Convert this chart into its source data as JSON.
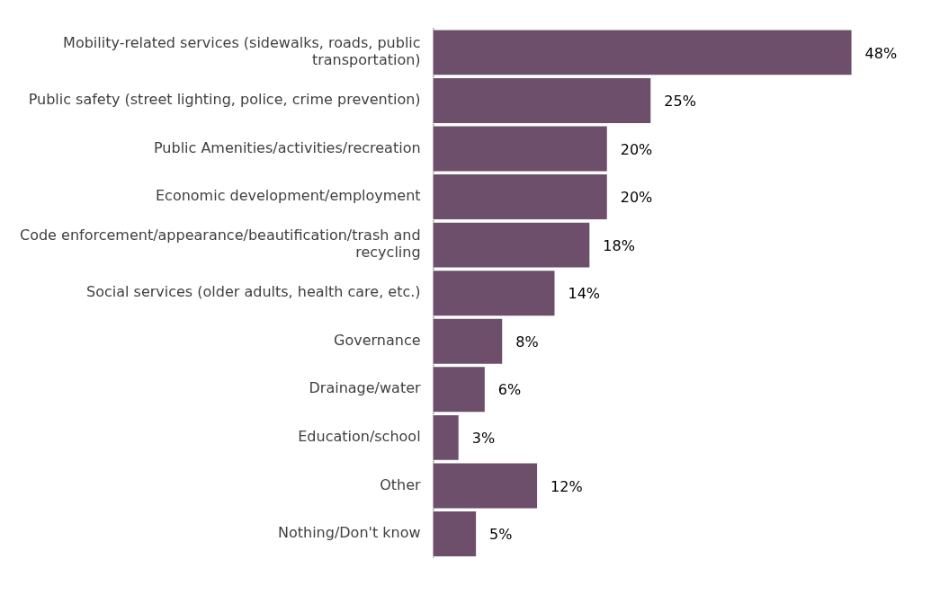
{
  "chart_data": {
    "type": "bar",
    "orientation": "horizontal",
    "categories": [
      "Mobility-related services (sidewalks, roads, public transportation)",
      "Public safety (street lighting, police, crime prevention)",
      "Public Amenities/activities/recreation",
      "Economic development/employment",
      "Code enforcement/appearance/beautification/trash and recycling",
      "Social services (older adults, health care, etc.)",
      "Governance",
      "Drainage/water",
      "Education/school",
      "Other",
      "Nothing/Don't know"
    ],
    "values": [
      48,
      25,
      20,
      20,
      18,
      14,
      8,
      6,
      3,
      12,
      5
    ],
    "value_labels": [
      "48%",
      "25%",
      "20%",
      "20%",
      "18%",
      "14%",
      "8%",
      "6%",
      "3%",
      "12%",
      "5%"
    ],
    "color": "#6e4f6b"
  }
}
